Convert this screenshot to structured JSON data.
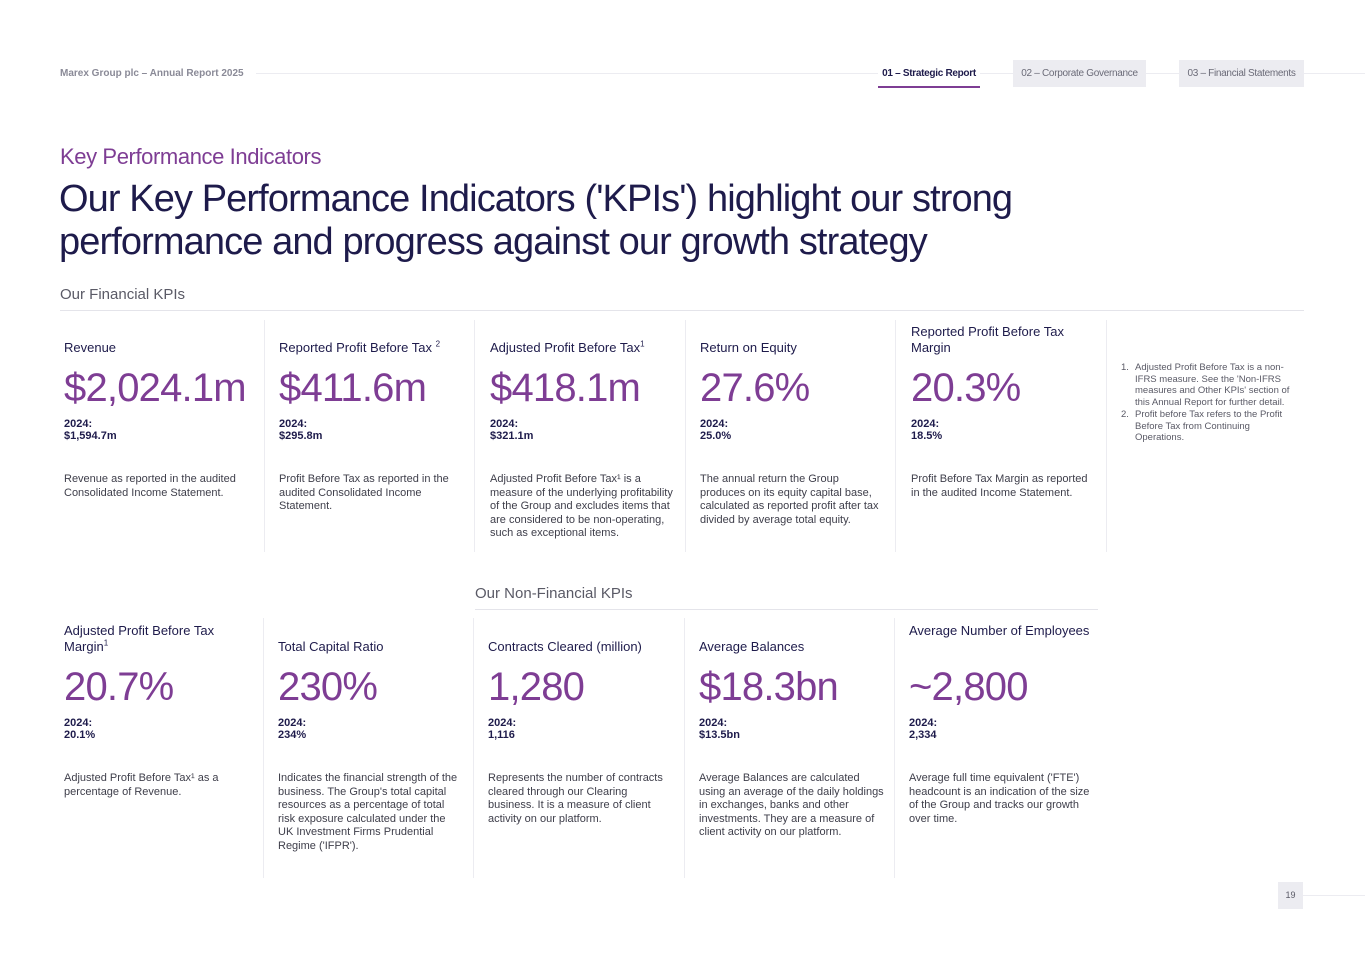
{
  "header": {
    "report_title": "Marex Group plc – Annual Report 2025",
    "tabs": [
      "01 – Strategic Report",
      "02 – Corporate Governance",
      "03 – Financial Statements"
    ]
  },
  "section_label": "Key Performance Indicators",
  "headline": "Our Key Performance Indicators ('KPIs') highlight our strong performance and progress against our growth strategy",
  "financial_heading": "Our Financial KPIs",
  "non_financial_heading": "Our Non-Financial KPIs",
  "financial_kpis": [
    {
      "title": "Revenue",
      "sup": "",
      "value": "$2,024.1m",
      "prior": "2024: $1,594.7m",
      "desc": "Revenue as reported in the audited Consolidated Income Statement."
    },
    {
      "title": "Reported Profit Before Tax",
      "sup": "2",
      "value": "$411.6m",
      "prior": "2024: $295.8m",
      "desc": "Profit Before Tax as reported in the audited Consolidated Income Statement."
    },
    {
      "title": "Adjusted Profit Before Tax",
      "sup": "1",
      "value": "$418.1m",
      "prior": "2024: $321.1m",
      "desc": "Adjusted Profit Before Tax¹ is a measure of the underlying profitability of the Group and excludes items that are considered to be non-operating, such as exceptional items."
    },
    {
      "title": "Return on Equity",
      "sup": "",
      "value": "27.6%",
      "prior": "2024: 25.0%",
      "desc": "The annual return the Group produces on its equity capital base, calculated as reported profit after tax divided by average total equity."
    },
    {
      "title": "Reported Profit Before Tax Margin",
      "sup": "",
      "value": "20.3%",
      "prior": "2024: 18.5%",
      "desc": "Profit Before Tax Margin as reported in the audited Income Statement."
    }
  ],
  "non_financial_kpis": [
    {
      "title": "Adjusted Profit Before Tax Margin",
      "sup": "1",
      "value": "20.7%",
      "prior": "2024: 20.1%",
      "desc": "Adjusted Profit Before Tax¹ as a percentage of Revenue."
    },
    {
      "title": "Total Capital Ratio",
      "sup": "",
      "value": "230%",
      "prior": "2024: 234%",
      "desc": "Indicates the financial strength of the business. The Group's total capital resources as a percentage of total risk exposure calculated under the UK Investment Firms Prudential Regime ('IFPR')."
    },
    {
      "title": "Contracts Cleared (million)",
      "sup": "",
      "value": "1,280",
      "prior": "2024: 1,116",
      "desc": "Represents the number of contracts cleared through our Clearing business. It is a measure of client activity on our platform."
    },
    {
      "title": "Average Balances",
      "sup": "",
      "value": "$18.3bn",
      "prior": "2024: $13.5bn",
      "desc": "Average Balances are calculated using an average of the daily holdings in exchanges, banks and other investments. They are a measure of client activity on our platform."
    },
    {
      "title": "Average Number of Employees",
      "sup": "",
      "value": "~2,800",
      "prior": "2024: 2,334",
      "desc": "Average full time equivalent ('FTE') headcount is an indication of the size of the Group and tracks our growth over time."
    }
  ],
  "footnotes": [
    {
      "num": "1.",
      "text": "Adjusted Profit Before Tax is a non-IFRS measure. See the 'Non-IFRS measures and Other KPIs' section of this Annual Report for further detail."
    },
    {
      "num": "2.",
      "text": "Profit before Tax refers to the Profit Before Tax from Continuing Operations."
    }
  ],
  "page_number": "19"
}
